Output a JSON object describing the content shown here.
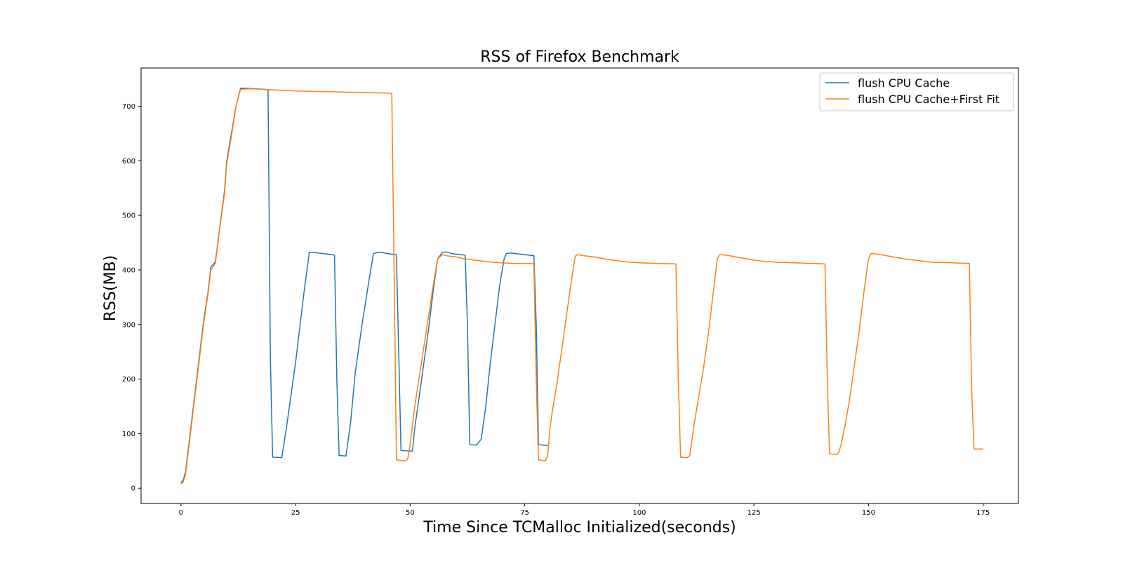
{
  "chart_data": {
    "type": "line",
    "title": "RSS of Firefox Benchmark",
    "xlabel": "Time Since TCMalloc Initialized(seconds)",
    "ylabel": "RSS(MB)",
    "xlim": [
      -8.7,
      182.7
    ],
    "ylim": [
      -28,
      770
    ],
    "xticks": [
      0,
      25,
      50,
      75,
      100,
      125,
      150,
      175
    ],
    "yticks": [
      0,
      100,
      200,
      300,
      400,
      500,
      600,
      700
    ],
    "xtick_labels": [
      "0",
      "25",
      "50",
      "75",
      "100",
      "125",
      "150",
      "175"
    ],
    "ytick_labels": [
      "0",
      "100",
      "200",
      "300",
      "400",
      "500",
      "600",
      "700"
    ],
    "grid": false,
    "legend_position": "top-right",
    "series": [
      {
        "name": "flush CPU Cache",
        "color": "#1f77b4",
        "points": [
          [
            0,
            10
          ],
          [
            0.5,
            15
          ],
          [
            1,
            30
          ],
          [
            2,
            100
          ],
          [
            3,
            170
          ],
          [
            4,
            240
          ],
          [
            5,
            310
          ],
          [
            6,
            365
          ],
          [
            6.5,
            405
          ],
          [
            7.5,
            415
          ],
          [
            8.5,
            480
          ],
          [
            9.5,
            545
          ],
          [
            10,
            600
          ],
          [
            11,
            650
          ],
          [
            12,
            700
          ],
          [
            13,
            733
          ],
          [
            14,
            733
          ],
          [
            16,
            732
          ],
          [
            18,
            731
          ],
          [
            19,
            730
          ],
          [
            19.5,
            240
          ],
          [
            20,
            57
          ],
          [
            22,
            56
          ],
          [
            23,
            110
          ],
          [
            25,
            230
          ],
          [
            26,
            300
          ],
          [
            27,
            370
          ],
          [
            28,
            432
          ],
          [
            29,
            432
          ],
          [
            31,
            430
          ],
          [
            33,
            428
          ],
          [
            33.5,
            427
          ],
          [
            34,
            200
          ],
          [
            34.5,
            60
          ],
          [
            36,
            59
          ],
          [
            37,
            120
          ],
          [
            38,
            210
          ],
          [
            39.5,
            300
          ],
          [
            41,
            380
          ],
          [
            42,
            430
          ],
          [
            43,
            432
          ],
          [
            44,
            432
          ],
          [
            45,
            430
          ],
          [
            47,
            428
          ],
          [
            48,
            69
          ],
          [
            50.5,
            68
          ],
          [
            51,
            110
          ],
          [
            52.5,
            200
          ],
          [
            54,
            290
          ],
          [
            55,
            360
          ],
          [
            56,
            420
          ],
          [
            57,
            432
          ],
          [
            58,
            433
          ],
          [
            59,
            430
          ],
          [
            61,
            428
          ],
          [
            62,
            427
          ],
          [
            62.5,
            300
          ],
          [
            63,
            80
          ],
          [
            64.5,
            79
          ],
          [
            65.5,
            90
          ],
          [
            66.5,
            150
          ],
          [
            67.5,
            230
          ],
          [
            68.5,
            300
          ],
          [
            69.5,
            370
          ],
          [
            70.5,
            420
          ],
          [
            71,
            430
          ],
          [
            72,
            431
          ],
          [
            73,
            430
          ],
          [
            74,
            429
          ],
          [
            75,
            428
          ],
          [
            77,
            426
          ],
          [
            77.5,
            300
          ],
          [
            78,
            80
          ],
          [
            79,
            79
          ],
          [
            80,
            78
          ]
        ]
      },
      {
        "name": "flush CPU Cache+First Fit",
        "color": "#ff7f0e",
        "points": [
          [
            0,
            8
          ],
          [
            0.5,
            12
          ],
          [
            1,
            25
          ],
          [
            2,
            95
          ],
          [
            3,
            165
          ],
          [
            4,
            235
          ],
          [
            5,
            305
          ],
          [
            6,
            362
          ],
          [
            6.5,
            400
          ],
          [
            7.5,
            412
          ],
          [
            8.5,
            478
          ],
          [
            9.5,
            540
          ],
          [
            10,
            595
          ],
          [
            11,
            645
          ],
          [
            12,
            700
          ],
          [
            13,
            731
          ],
          [
            15,
            732
          ],
          [
            18,
            731
          ],
          [
            20,
            730
          ],
          [
            25,
            728
          ],
          [
            30,
            727
          ],
          [
            35,
            726
          ],
          [
            40,
            725
          ],
          [
            45,
            724
          ],
          [
            46,
            723
          ],
          [
            46.5,
            400
          ],
          [
            47,
            52
          ],
          [
            49,
            50
          ],
          [
            49.5,
            55
          ],
          [
            50,
            80
          ],
          [
            51,
            150
          ],
          [
            53,
            260
          ],
          [
            55,
            370
          ],
          [
            56,
            420
          ],
          [
            57,
            428
          ],
          [
            58,
            426
          ],
          [
            60,
            424
          ],
          [
            62,
            420
          ],
          [
            64,
            418
          ],
          [
            66,
            416
          ],
          [
            68,
            414
          ],
          [
            70,
            413
          ],
          [
            73,
            412
          ],
          [
            76,
            412
          ],
          [
            77,
            411
          ],
          [
            77.5,
            200
          ],
          [
            78,
            52
          ],
          [
            79.5,
            50
          ],
          [
            80,
            60
          ],
          [
            80.5,
            110
          ],
          [
            81,
            140
          ],
          [
            82,
            190
          ],
          [
            83,
            250
          ],
          [
            84,
            310
          ],
          [
            85,
            370
          ],
          [
            86,
            425
          ],
          [
            86.5,
            428
          ],
          [
            88,
            426
          ],
          [
            90,
            424
          ],
          [
            92,
            421
          ],
          [
            94,
            418
          ],
          [
            96,
            416
          ],
          [
            98,
            414
          ],
          [
            100,
            413
          ],
          [
            104,
            412
          ],
          [
            108,
            411
          ],
          [
            108.5,
            200
          ],
          [
            109,
            57
          ],
          [
            110.5,
            56
          ],
          [
            111,
            60
          ],
          [
            111.5,
            90
          ],
          [
            112,
            120
          ],
          [
            113,
            170
          ],
          [
            114,
            220
          ],
          [
            115,
            280
          ],
          [
            116,
            350
          ],
          [
            117,
            420
          ],
          [
            117.5,
            428
          ],
          [
            119,
            427
          ],
          [
            121,
            424
          ],
          [
            123,
            421
          ],
          [
            125,
            418
          ],
          [
            127,
            416
          ],
          [
            130,
            414
          ],
          [
            134,
            413
          ],
          [
            138,
            412
          ],
          [
            140.5,
            411
          ],
          [
            141,
            200
          ],
          [
            141.5,
            63
          ],
          [
            143,
            62
          ],
          [
            143.5,
            65
          ],
          [
            144,
            80
          ],
          [
            145,
            120
          ],
          [
            146,
            170
          ],
          [
            147,
            230
          ],
          [
            148,
            290
          ],
          [
            149,
            360
          ],
          [
            150,
            420
          ],
          [
            150.5,
            430
          ],
          [
            152,
            429
          ],
          [
            154,
            426
          ],
          [
            156,
            423
          ],
          [
            158,
            420
          ],
          [
            160,
            418
          ],
          [
            162,
            416
          ],
          [
            164,
            414
          ],
          [
            168,
            413
          ],
          [
            172,
            412
          ],
          [
            172.5,
            180
          ],
          [
            173,
            72
          ],
          [
            174,
            72
          ],
          [
            175,
            72
          ]
        ]
      }
    ]
  }
}
